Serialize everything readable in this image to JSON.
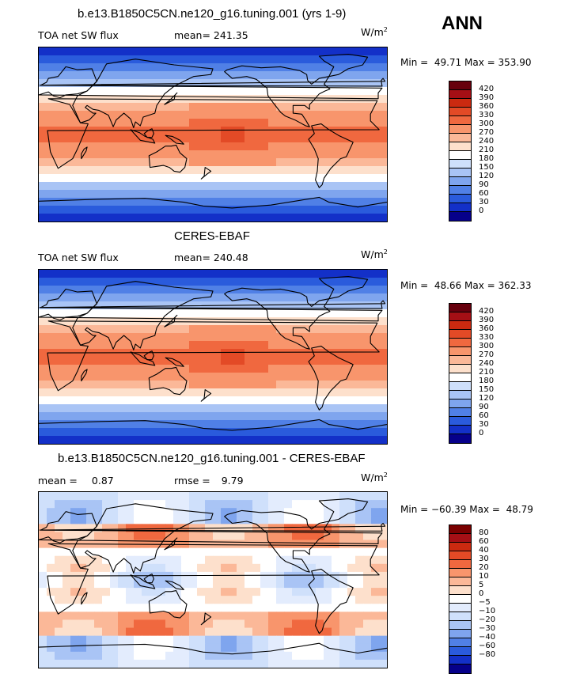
{
  "season": "ANN",
  "panels": [
    {
      "title": "b.e13.B1850C5CN.ne120_g16.tuning.001 (yrs 1-9)",
      "left_label": "TOA net SW flux",
      "stat_label": "mean=",
      "stat_value": "241.35",
      "units": "W/m",
      "units_exp": "2",
      "min_label": "Min =",
      "min_value": "49.71",
      "max_label": "Max =",
      "max_value": "353.90",
      "colorbar_labels": [
        "420",
        "390",
        "360",
        "330",
        "300",
        "270",
        "240",
        "210",
        "180",
        "150",
        "120",
        "90",
        "60",
        "30",
        "0"
      ],
      "map_type": "abs"
    },
    {
      "title": "CERES-EBAF",
      "left_label": "TOA net SW flux",
      "stat_label": "mean=",
      "stat_value": "240.48",
      "units": "W/m",
      "units_exp": "2",
      "min_label": "Min =",
      "min_value": "48.66",
      "max_label": "Max =",
      "max_value": "362.33",
      "colorbar_labels": [
        "420",
        "390",
        "360",
        "330",
        "300",
        "270",
        "240",
        "210",
        "180",
        "150",
        "120",
        "90",
        "60",
        "30",
        "0"
      ],
      "map_type": "abs"
    },
    {
      "title": "b.e13.B1850C5CN.ne120_g16.tuning.001 - CERES-EBAF",
      "left_label": "mean =",
      "left_value": "0.87",
      "stat_label": "rmse =",
      "stat_value": "9.79",
      "units": "W/m",
      "units_exp": "2",
      "min_label": "Min =",
      "min_value": "−60.39",
      "max_label": "Max =",
      "max_value": "48.79",
      "colorbar_labels": [
        "80",
        "60",
        "40",
        "30",
        "20",
        "10",
        "5",
        "0",
        "−5",
        "−10",
        "−20",
        "−30",
        "−40",
        "−60",
        "−80"
      ],
      "map_type": "diff"
    }
  ],
  "colors": {
    "abs_scale": [
      "#67000d",
      "#a50f15",
      "#cb2a10",
      "#e34a26",
      "#f0683f",
      "#f8956c",
      "#fbb898",
      "#fde0cc",
      "#ffffff",
      "#cfe0fb",
      "#a9c4f5",
      "#7fa5ee",
      "#5080e6",
      "#2a5bdc",
      "#1330c8",
      "#06008a"
    ],
    "diff_scale": [
      "#7a0000",
      "#a50f15",
      "#cb2a10",
      "#e34a26",
      "#f0683f",
      "#f8956c",
      "#fbb898",
      "#fde0cc",
      "#ffffff",
      "#e3ecfd",
      "#cfe0fb",
      "#a9c4f5",
      "#7fa5ee",
      "#5080e6",
      "#2a5bdc",
      "#1330c8",
      "#06008a"
    ]
  }
}
